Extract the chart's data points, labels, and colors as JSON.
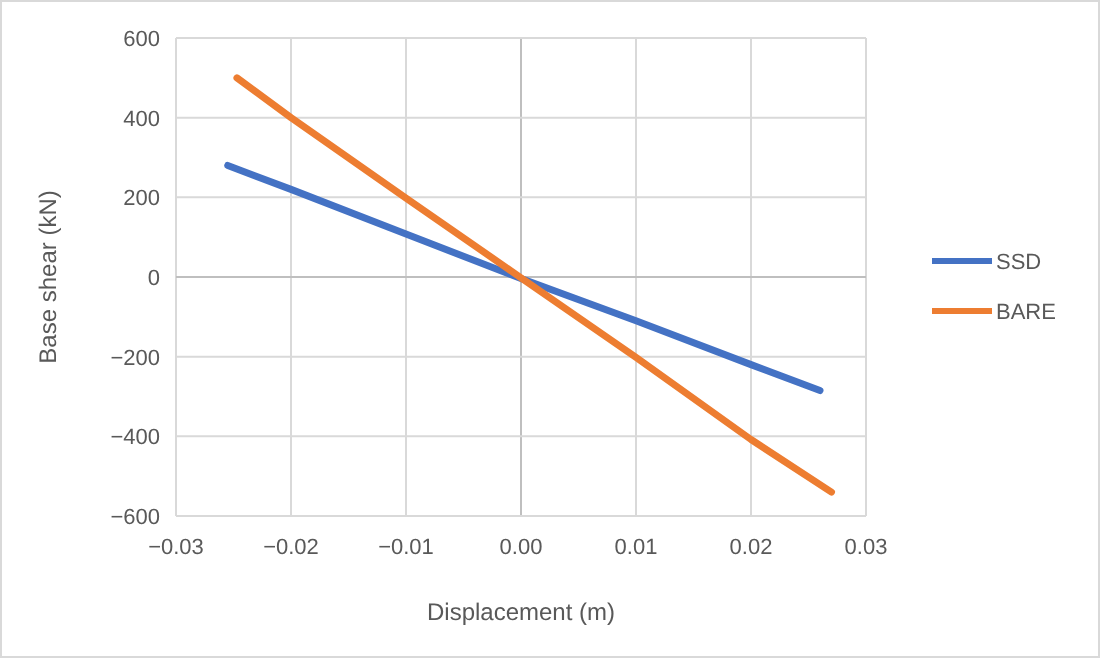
{
  "chart_data": {
    "type": "line",
    "xlabel": "Displacement (m)",
    "ylabel": "Base shear (kN)",
    "xlim": [
      -0.03,
      0.03
    ],
    "xticks": [
      {
        "value": -0.03,
        "label": "−0.03"
      },
      {
        "value": -0.02,
        "label": "−0.02"
      },
      {
        "value": -0.01,
        "label": "−0.01"
      },
      {
        "value": 0,
        "label": "0.00"
      },
      0.01,
      0.02,
      0.03
    ],
    "ylim": [
      -600,
      600
    ],
    "yticks": [
      {
        "value": -600,
        "label": "−600"
      },
      {
        "value": -400,
        "label": "−400"
      },
      {
        "value": -200,
        "label": "−200"
      },
      0,
      200,
      400,
      600
    ],
    "grid": true,
    "legend": "right",
    "marker": "none",
    "line_style": "solid",
    "series": [
      {
        "name": "SSD",
        "color": "#4472c4",
        "x": [
          -0.0255,
          -0.02,
          -0.01,
          0,
          0.01,
          0.02,
          0.026
        ],
        "values": [
          280,
          220,
          108,
          -4,
          -110,
          -220,
          -285
        ]
      },
      {
        "name": "BARE",
        "color": "#ed7d31",
        "x": [
          -0.0247,
          -0.02,
          -0.01,
          0,
          0.01,
          0.02,
          0.027
        ],
        "values": [
          500,
          400,
          198,
          -2,
          -202,
          -408,
          -540
        ]
      }
    ]
  }
}
